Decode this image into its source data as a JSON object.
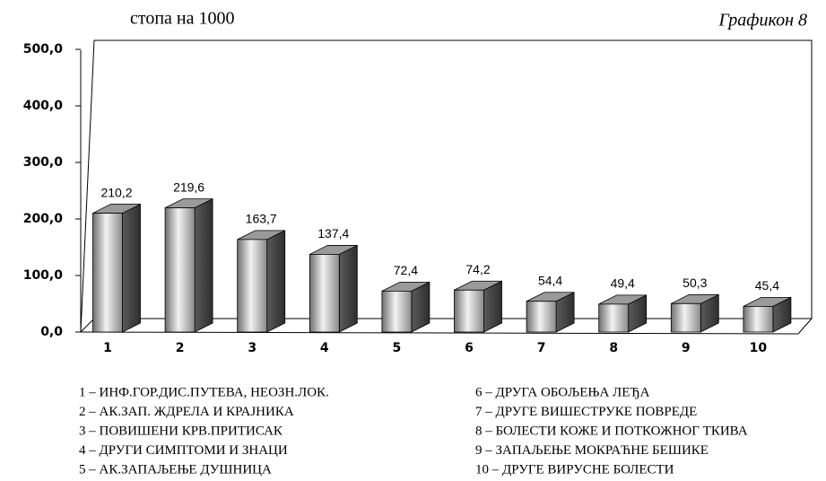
{
  "chart_data": {
    "type": "bar3d",
    "title": "Графикон 8",
    "y_label": "стопа на 1000",
    "categories": [
      "1",
      "2",
      "3",
      "4",
      "5",
      "6",
      "7",
      "8",
      "9",
      "10"
    ],
    "values": [
      210.2,
      219.6,
      163.7,
      137.4,
      72.4,
      74.2,
      54.4,
      49.4,
      50.3,
      45.4
    ],
    "value_labels": [
      "210,2",
      "219,6",
      "163,7",
      "137,4",
      "72,4",
      "74,2",
      "54,4",
      "49,4",
      "50,3",
      "45,4"
    ],
    "ylim": [
      0,
      500
    ],
    "yticks": [
      {
        "value": 0,
        "label": "0,0"
      },
      {
        "value": 100,
        "label": "100,0"
      },
      {
        "value": 200,
        "label": "200,0"
      },
      {
        "value": 300,
        "label": "300,0"
      },
      {
        "value": 400,
        "label": "400,0"
      },
      {
        "value": 500,
        "label": "500,0"
      }
    ],
    "legend_items": [
      "1 – ИНФ.ГОР.ДИС.ПУТЕВА, НЕОЗН.ЛОК.",
      "2 – АК.ЗАП. ЖДРЕЛА И КРАЈНИКА",
      "3 – ПОВИШЕНИ КРВ.ПРИТИСАК",
      "4 – ДРУГИ СИМПТОМИ И ЗНАЦИ",
      "5 – АК.ЗАПАЉЕЊЕ ДУШНИЦА",
      "6 –  ДРУГА ОБОЉЕЊА ЛЕЂА",
      "7 – ДРУГЕ ВИШЕСТРУКЕ ПОВРЕДЕ",
      "8 – БОЛЕСТИ КОЖЕ И ПОТКОЖНОГ ТКИВА",
      "9 – ЗАПАЉЕЊЕ МОКРАЋНЕ БЕШИКЕ",
      "10 – ДРУГЕ ВИРУСНЕ БОЛЕСТИ"
    ]
  }
}
